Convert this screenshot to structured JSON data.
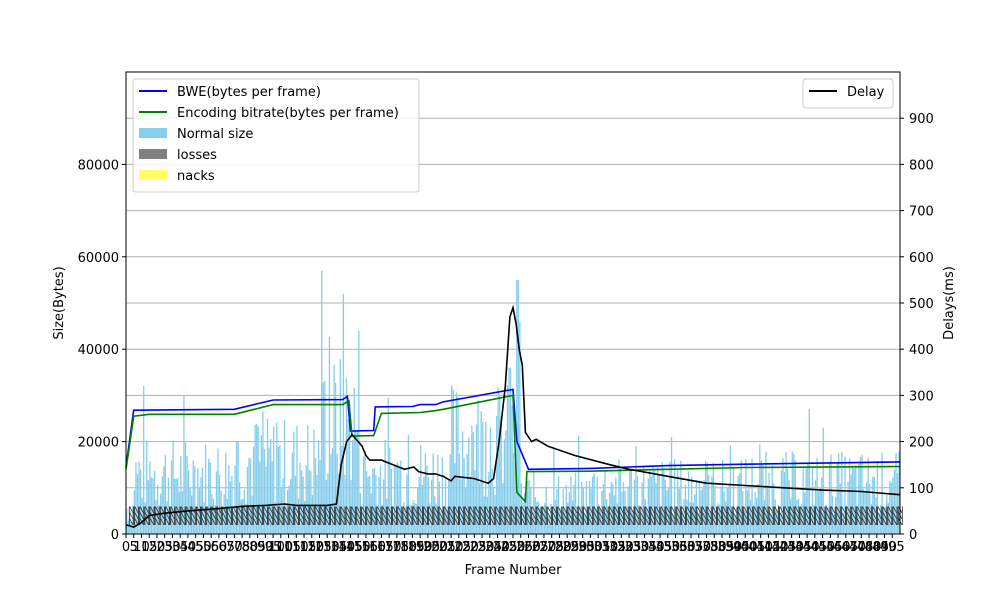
{
  "chart_data": {
    "type": "bar",
    "xlabel": "Frame Number",
    "ylabel_left": "Size(Bytes)",
    "ylabel_right": "Delays(ms)",
    "x_range": [
      0,
      1000
    ],
    "ylim_left": [
      0,
      100000
    ],
    "ylim_right": [
      0,
      1000
    ],
    "grid": "horizontal, right axis",
    "legend_left": {
      "placement": "top-left",
      "entries": [
        {
          "label": "BWE(bytes per frame)",
          "kind": "line",
          "color": "#0000ff"
        },
        {
          "label": "Encoding bitrate(bytes per frame)",
          "kind": "line",
          "color": "#008000"
        },
        {
          "label": "Normal size",
          "kind": "patch",
          "color": "#87ceeb"
        },
        {
          "label": "losses",
          "kind": "patch",
          "color": "#808080"
        },
        {
          "label": "nacks",
          "kind": "patch",
          "color": "#ffff66"
        }
      ]
    },
    "legend_right": {
      "placement": "top-right",
      "entries": [
        {
          "label": "Delay",
          "kind": "line",
          "color": "#000000"
        }
      ]
    },
    "x_tick_labels": [
      "0",
      "5",
      "10",
      "15",
      "20",
      "25",
      "30",
      "35",
      "40",
      "45",
      "50",
      "55",
      "60",
      "65",
      "70",
      "75",
      "80",
      "85",
      "90",
      "95",
      "100",
      "105",
      "110",
      "115",
      "120",
      "125",
      "130",
      "135",
      "140",
      "145",
      "150",
      "155",
      "160",
      "165",
      "170",
      "175",
      "180",
      "185",
      "190",
      "195",
      "200",
      "205",
      "210",
      "215",
      "220",
      "225",
      "230",
      "235",
      "240",
      "245",
      "250",
      "255",
      "260",
      "265",
      "270",
      "275",
      "280",
      "285",
      "290",
      "295",
      "300",
      "305",
      "310",
      "315",
      "320",
      "325",
      "330",
      "335",
      "340",
      "345",
      "350",
      "355",
      "360",
      "365",
      "370",
      "375",
      "380",
      "385",
      "390",
      "395",
      "400",
      "405",
      "410",
      "415",
      "420",
      "425",
      "430",
      "435",
      "440",
      "445",
      "450",
      "455",
      "460",
      "465",
      "470",
      "475",
      "480",
      "485",
      "490",
      "495"
    ],
    "y_ticks_left": [
      "0",
      "20000",
      "40000",
      "60000",
      "80000"
    ],
    "y_ticks_right": [
      "0",
      "100",
      "200",
      "300",
      "400",
      "500",
      "600",
      "700",
      "800",
      "900"
    ],
    "series": [
      {
        "name": "BWE(bytes per frame)",
        "color": "#0000ff",
        "points": [
          [
            0,
            14500
          ],
          [
            10,
            26800
          ],
          [
            140,
            27000
          ],
          [
            190,
            29000
          ],
          [
            280,
            29100
          ],
          [
            286,
            29800
          ],
          [
            290,
            22300
          ],
          [
            320,
            22400
          ],
          [
            322,
            27500
          ],
          [
            370,
            27600
          ],
          [
            380,
            28000
          ],
          [
            400,
            28000
          ],
          [
            410,
            28600
          ],
          [
            500,
            31300
          ],
          [
            505,
            20000
          ],
          [
            520,
            14000
          ],
          [
            600,
            14200
          ],
          [
            700,
            14800
          ],
          [
            800,
            15100
          ],
          [
            1000,
            15600
          ]
        ]
      },
      {
        "name": "Encoding bitrate(bytes per frame)",
        "color": "#008000",
        "points": [
          [
            0,
            14000
          ],
          [
            10,
            25500
          ],
          [
            30,
            25900
          ],
          [
            140,
            25900
          ],
          [
            190,
            28000
          ],
          [
            280,
            28000
          ],
          [
            288,
            28800
          ],
          [
            292,
            21200
          ],
          [
            320,
            21300
          ],
          [
            330,
            26100
          ],
          [
            380,
            26300
          ],
          [
            390,
            26500
          ],
          [
            400,
            26700
          ],
          [
            410,
            27000
          ],
          [
            500,
            30000
          ],
          [
            505,
            9000
          ],
          [
            516,
            7000
          ],
          [
            518,
            13500
          ],
          [
            600,
            13600
          ],
          [
            700,
            14000
          ],
          [
            800,
            14400
          ],
          [
            1000,
            14600
          ]
        ]
      },
      {
        "name": "Delay",
        "color": "#000000",
        "axis": "right",
        "points": [
          [
            0,
            20
          ],
          [
            10,
            15
          ],
          [
            20,
            25
          ],
          [
            30,
            40
          ],
          [
            50,
            45
          ],
          [
            80,
            50
          ],
          [
            120,
            55
          ],
          [
            150,
            60
          ],
          [
            180,
            62
          ],
          [
            205,
            65
          ],
          [
            220,
            62
          ],
          [
            260,
            62
          ],
          [
            272,
            65
          ],
          [
            278,
            150
          ],
          [
            285,
            200
          ],
          [
            292,
            215
          ],
          [
            300,
            200
          ],
          [
            305,
            190
          ],
          [
            310,
            170
          ],
          [
            315,
            160
          ],
          [
            330,
            160
          ],
          [
            345,
            150
          ],
          [
            360,
            140
          ],
          [
            372,
            145
          ],
          [
            378,
            135
          ],
          [
            390,
            130
          ],
          [
            400,
            130
          ],
          [
            410,
            125
          ],
          [
            420,
            115
          ],
          [
            425,
            125
          ],
          [
            450,
            120
          ],
          [
            468,
            110
          ],
          [
            475,
            120
          ],
          [
            482,
            200
          ],
          [
            490,
            320
          ],
          [
            496,
            470
          ],
          [
            500,
            490
          ],
          [
            504,
            455
          ],
          [
            508,
            400
          ],
          [
            512,
            365
          ],
          [
            516,
            220
          ],
          [
            524,
            200
          ],
          [
            530,
            205
          ],
          [
            545,
            190
          ],
          [
            580,
            170
          ],
          [
            625,
            150
          ],
          [
            650,
            140
          ],
          [
            700,
            125
          ],
          [
            750,
            110
          ],
          [
            800,
            105
          ],
          [
            850,
            100
          ],
          [
            900,
            95
          ],
          [
            950,
            92
          ],
          [
            1000,
            85
          ]
        ]
      }
    ],
    "frame_size_bars": {
      "name": "Normal size",
      "color": "#87ceeb",
      "count": 500,
      "typical_range_bytes": [
        2000,
        35000
      ],
      "peaks": [
        [
          280,
          52000
        ],
        [
          300,
          44000
        ],
        [
          495,
          36000
        ],
        [
          505,
          55000
        ],
        [
          900,
          23000
        ]
      ]
    },
    "overlapping_annotations": "N"
  }
}
